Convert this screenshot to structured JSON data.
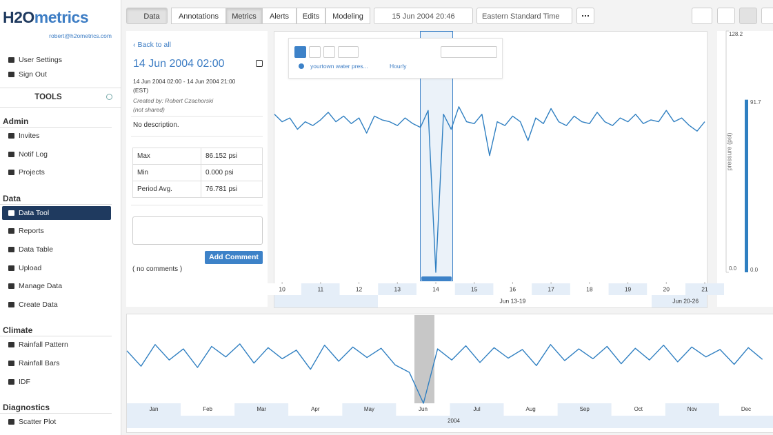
{
  "sidebar": {
    "logo": {
      "h2o": "H2O",
      "metrics": "metrics"
    },
    "email": "robert@h2ometrics.com",
    "links": [
      "User Settings",
      "Sign Out"
    ],
    "tools": "TOOLS",
    "sections": [
      {
        "title": "Admin",
        "items": [
          {
            "label": "Invites"
          },
          {
            "label": "Notif Log"
          },
          {
            "label": "Projects"
          }
        ]
      },
      {
        "title": "Data",
        "items": [
          {
            "label": "Data Tool",
            "active": true
          },
          {
            "label": "Reports"
          },
          {
            "label": "Data Table"
          },
          {
            "label": "Upload"
          },
          {
            "label": "Manage Data"
          },
          {
            "label": "Create Data"
          }
        ]
      },
      {
        "title": "Climate",
        "items": [
          {
            "label": "Rainfall Pattern"
          },
          {
            "label": "Rainfall Bars"
          },
          {
            "label": "IDF"
          }
        ]
      },
      {
        "title": "Diagnostics",
        "items": [
          {
            "label": "Scatter Plot"
          }
        ]
      }
    ]
  },
  "toolbar": {
    "tabs": [
      {
        "label": "Data",
        "active": true
      },
      {
        "label": "Annotations"
      },
      {
        "label": "Metrics",
        "active": true
      },
      {
        "label": "Alerts"
      },
      {
        "label": "Edits"
      },
      {
        "label": "Modeling"
      }
    ],
    "datetime": "15 Jun 2004 20:46",
    "timezone": "Eastern Standard Time"
  },
  "details": {
    "back": "Back to all",
    "title": "14 Jun 2004 02:00",
    "range": "14 Jun 2004 02:00 - 14 Jun 2004 21:00",
    "tz": "(EST)",
    "created_by": "Created by: Robert Czachorski",
    "shared": "(not shared)",
    "description": "No description.",
    "stats": [
      [
        "Max",
        "86.152 psi"
      ],
      [
        "Min",
        "0.000 psi"
      ],
      [
        "Period Avg.",
        "76.781 psi"
      ]
    ],
    "add_comment": "Add Comment",
    "no_comments": "( no comments )"
  },
  "chart_data": [
    {
      "type": "line",
      "series": [
        {
          "name": "yourtown water pres...",
          "color": "#2f7fc1",
          "values": [
            84,
            80,
            82,
            76,
            80,
            78,
            81,
            85,
            80,
            83,
            79,
            82,
            74,
            83,
            81,
            80,
            78,
            82,
            79,
            77,
            86,
            0,
            84,
            76,
            88,
            80,
            79,
            84,
            62,
            80,
            78,
            83,
            80,
            70,
            82,
            79,
            87,
            80,
            78,
            83,
            80,
            79,
            85,
            80,
            78,
            82,
            80,
            84,
            79,
            81,
            80,
            86,
            80,
            82,
            78,
            75,
            80
          ]
        }
      ],
      "interval": "Hourly",
      "x": [
        9.8,
        10,
        10.2,
        10.4,
        10.6,
        10.8,
        11,
        11.2,
        11.4,
        11.6,
        11.8,
        12,
        12.2,
        12.4,
        12.6,
        12.8,
        13,
        13.2,
        13.4,
        13.6,
        13.8,
        14,
        14.2,
        14.4,
        14.6,
        14.8,
        15,
        15.2,
        15.4,
        15.6,
        15.8,
        16,
        16.2,
        16.4,
        16.6,
        16.8,
        17,
        17.2,
        17.4,
        17.6,
        17.8,
        18,
        18.2,
        18.4,
        18.6,
        18.8,
        19,
        19.2,
        19.4,
        19.6,
        19.8,
        20,
        20.2,
        20.4,
        20.6,
        20.8,
        21
      ],
      "xlim": [
        9.8,
        21
      ],
      "xticks": [
        10,
        11,
        12,
        13,
        14,
        15,
        16,
        17,
        18,
        19,
        20,
        21
      ],
      "week_labels": [
        {
          "value": 16,
          "label": "Jun 13-19"
        },
        {
          "value": 20.5,
          "label": "Jun 20-26"
        }
      ],
      "ylim": [
        0,
        128.2
      ],
      "yticks": [
        {
          "value": 0,
          "label": "0.0"
        },
        128.2
      ],
      "y_label": "pressure (psi)",
      "gauge": {
        "value": 91.7,
        "ticks": [
          {
            "value": 0,
            "label": "0.0"
          }
        ]
      }
    },
    {
      "type": "line",
      "series": [
        {
          "color": "#2f7fc1",
          "values": [
            85,
            60,
            95,
            70,
            88,
            58,
            92,
            75,
            96,
            65,
            90,
            72,
            86,
            55,
            94,
            68,
            91,
            74,
            89,
            62,
            50,
            0,
            88,
            70,
            93,
            66,
            90,
            73,
            87,
            61,
            95,
            69,
            88,
            72,
            92,
            64,
            89,
            70,
            94,
            67,
            91,
            75,
            87,
            63,
            90,
            71
          ]
        }
      ],
      "x": [
        0,
        8,
        16,
        24,
        32,
        40,
        48,
        56,
        64,
        72,
        80,
        88,
        96,
        104,
        112,
        120,
        128,
        136,
        144,
        152,
        160,
        168,
        176,
        184,
        192,
        200,
        208,
        216,
        224,
        232,
        240,
        248,
        256,
        264,
        272,
        280,
        288,
        296,
        304,
        312,
        320,
        328,
        336,
        344,
        352,
        360
      ],
      "xlim": [
        0,
        366
      ],
      "ylim": [
        0,
        128.2
      ],
      "categories": [
        "Jan",
        "Feb",
        "Mar",
        "Apr",
        "May",
        "Jun",
        "Jul",
        "Aug",
        "Sep",
        "Oct",
        "Nov",
        "Dec"
      ],
      "year": "2004"
    }
  ]
}
